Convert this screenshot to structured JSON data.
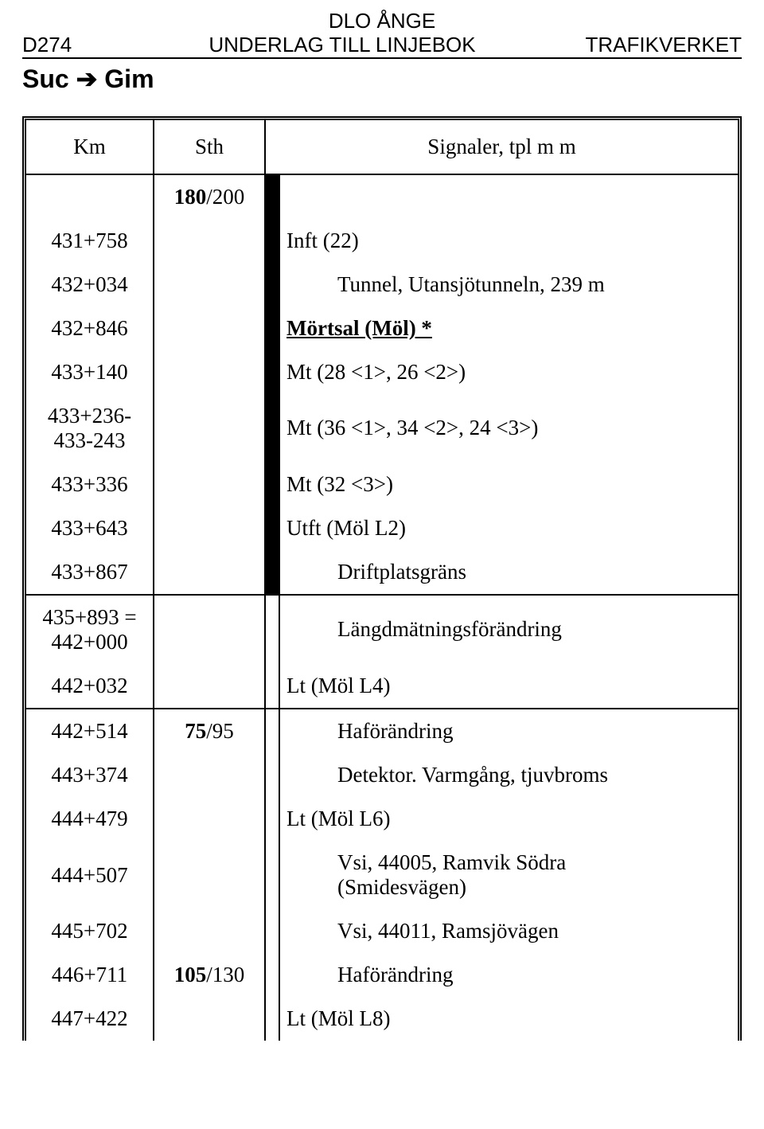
{
  "header": {
    "district": "DLO ÅNGE",
    "code": "D274",
    "title": "UNDERLAG TILL LINJEBOK",
    "agency": "TRAFIKVERKET"
  },
  "route": {
    "from": "Suc",
    "to": "Gim"
  },
  "columns": {
    "km": "Km",
    "sth": "Sth",
    "sig": "Signaler, tpl m m"
  },
  "speeds": {
    "s180": "180",
    "s200": "/200",
    "s75": "75",
    "s95": "/95",
    "s105": "105",
    "s130": "/130"
  },
  "rows": {
    "r0": {
      "km": "",
      "sig": ""
    },
    "r1": {
      "km": "431+758",
      "sig": "Inft (22)"
    },
    "r2": {
      "km": "432+034",
      "sig": "Tunnel, Utansjötunneln, 239 m"
    },
    "r3": {
      "km": "432+846",
      "sig": "Mörtsal (Möl) *"
    },
    "r4": {
      "km": "433+140",
      "sig": "Mt (28 <1>, 26 <2>)"
    },
    "r5": {
      "km": "433+236-",
      "km2": "433-243",
      "sig": "Mt (36 <1>, 34 <2>, 24 <3>)"
    },
    "r6": {
      "km": "433+336",
      "sig": "Mt (32 <3>)"
    },
    "r7": {
      "km": "433+643",
      "sig": "Utft (Möl L2)"
    },
    "r8": {
      "km": "433+867",
      "sig": "Driftplatsgräns"
    },
    "r9": {
      "km": "435+893 =",
      "km2": "442+000",
      "sig": "Längdmätningsförändring"
    },
    "r10": {
      "km": "442+032",
      "sig": "Lt (Möl L4)"
    },
    "r11": {
      "km": "442+514",
      "sig": "Haförändring"
    },
    "r12": {
      "km": "443+374",
      "sig": "Detektor. Varmgång, tjuvbroms"
    },
    "r13": {
      "km": "444+479",
      "sig": "Lt (Möl L6)"
    },
    "r14": {
      "km": "444+507",
      "sig": "Vsi, 44005, Ramvik Södra",
      "sig2": "(Smidesvägen)"
    },
    "r15": {
      "km": "445+702",
      "sig": "Vsi, 44011, Ramsjövägen"
    },
    "r16": {
      "km": "446+711",
      "sig": "Haförändring"
    },
    "r17": {
      "km": "447+422",
      "sig": "Lt (Möl L8)"
    }
  }
}
